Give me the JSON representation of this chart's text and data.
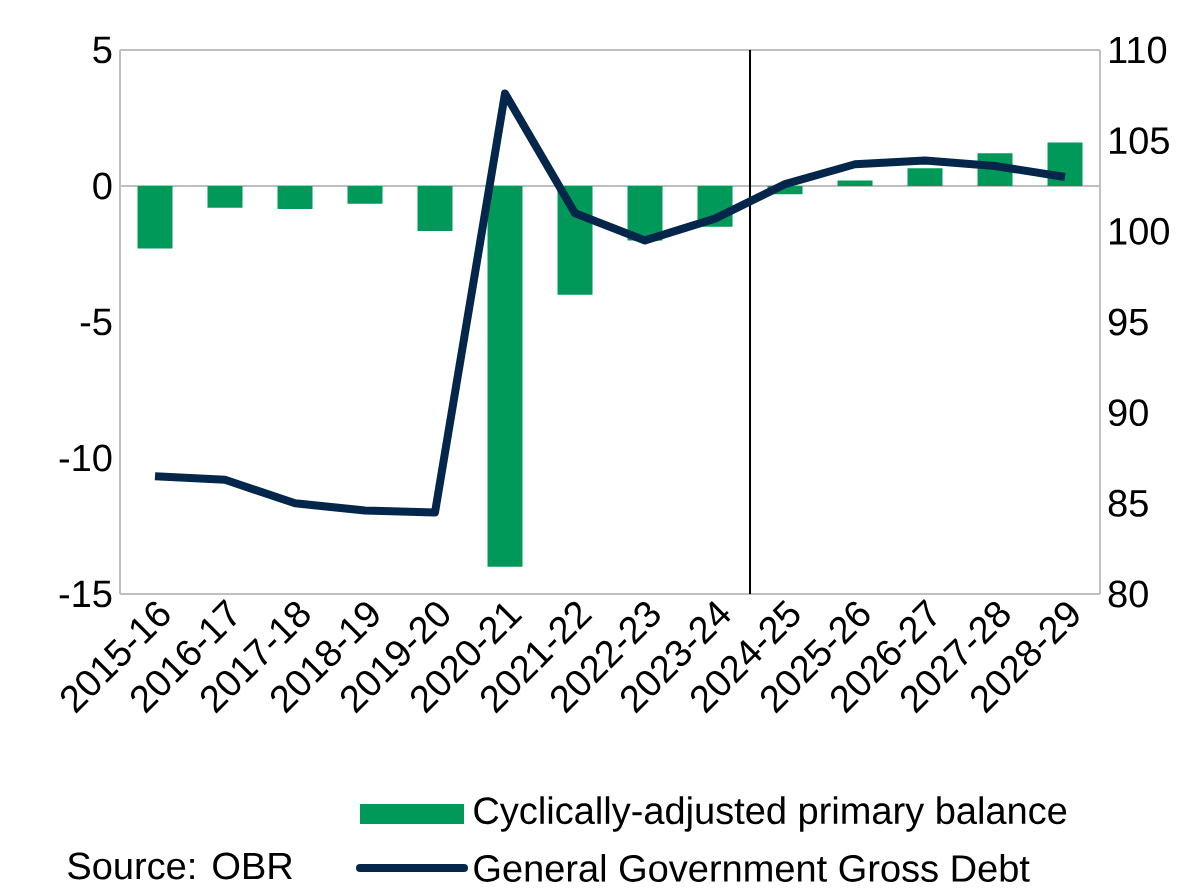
{
  "chart_data": {
    "type": "bar",
    "categories": [
      "2015-16",
      "2016-17",
      "2017-18",
      "2018-19",
      "2019-20",
      "2020-21",
      "2021-22",
      "2022-23",
      "2023-24",
      "2024-25",
      "2025-26",
      "2026-27",
      "2027-28",
      "2028-29"
    ],
    "series": [
      {
        "name": "Cyclically-adjusted primary balance",
        "color": "#00995a",
        "values": [
          -2.3,
          -0.8,
          -0.85,
          -0.65,
          -1.65,
          -14.0,
          -4.0,
          -2.0,
          -1.5,
          -0.3,
          0.2,
          0.65,
          1.2,
          1.6
        ]
      },
      {
        "name": "General Government Gross Debt",
        "type": "line",
        "axis": "y2",
        "color": "#03264a",
        "values": [
          86.5,
          86.3,
          85.0,
          84.6,
          84.5,
          107.6,
          101.0,
          99.5,
          100.7,
          102.6,
          103.7,
          103.9,
          103.6,
          103.0
        ]
      }
    ],
    "ylim": [
      -15,
      5
    ],
    "yticks": [
      -15,
      -10,
      -5,
      0,
      5
    ],
    "y2lim": [
      80,
      110
    ],
    "y2ticks": [
      80,
      85,
      90,
      95,
      100,
      105,
      110
    ],
    "ref_lines": [
      {
        "axis": "x",
        "value": "2024-25",
        "color": "#000000"
      }
    ],
    "legend": "bottom",
    "grid": false,
    "marker": "none",
    "line_style": "solid",
    "annotations": [
      "Source: OBR"
    ]
  }
}
